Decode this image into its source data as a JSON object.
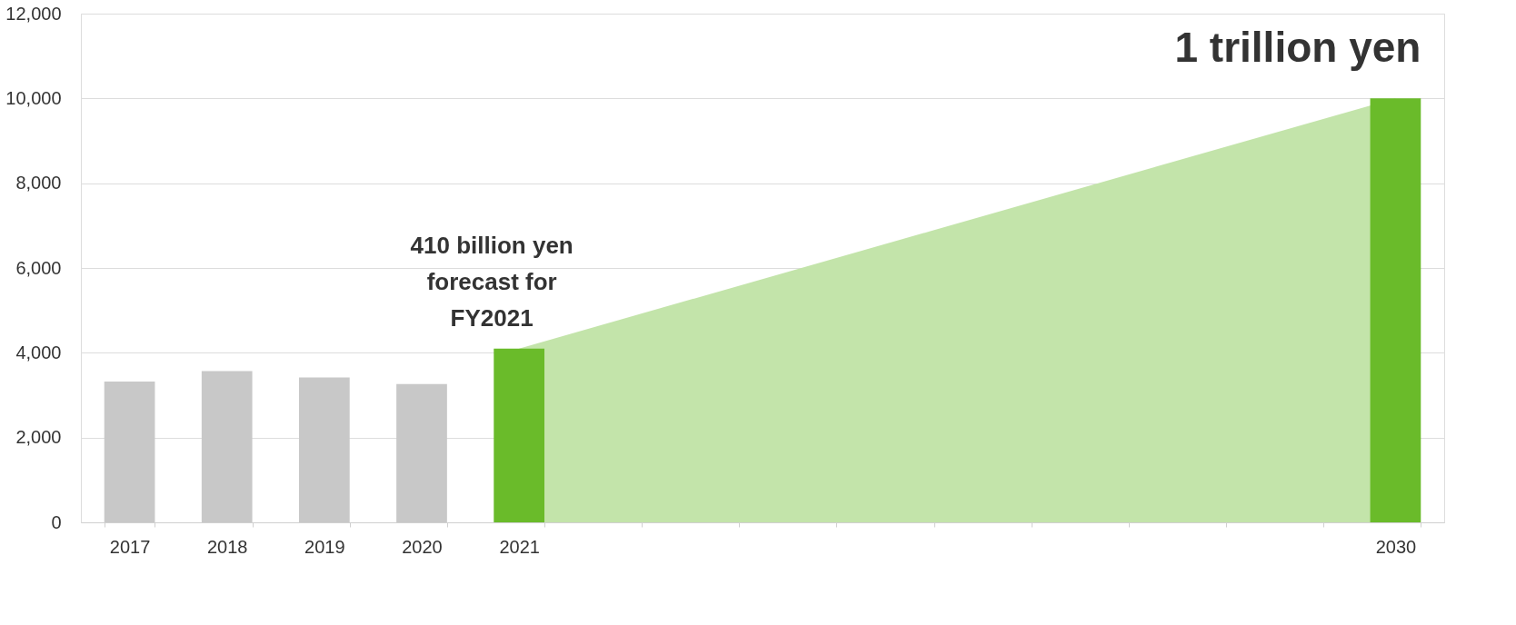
{
  "chart_data": {
    "type": "bar",
    "categories": [
      "2017",
      "2018",
      "2019",
      "2020",
      "2021",
      null,
      null,
      null,
      null,
      null,
      null,
      null,
      null,
      "2030"
    ],
    "series": [
      {
        "type": "area",
        "color": "#c3e4aa",
        "values": [
          null,
          null,
          null,
          null,
          4100,
          null,
          null,
          null,
          null,
          null,
          null,
          null,
          null,
          10000
        ]
      },
      {
        "colors": [
          "#c8c8c8",
          "#c8c8c8",
          "#c8c8c8",
          "#c8c8c8",
          "#6abb2a",
          null,
          null,
          null,
          null,
          null,
          null,
          null,
          null,
          "#6abb2a"
        ],
        "values": [
          3320,
          3570,
          3420,
          3260,
          4100,
          null,
          null,
          null,
          null,
          null,
          null,
          null,
          null,
          10000
        ]
      }
    ],
    "ylim": [
      0,
      12000
    ],
    "yticks": [
      0,
      {
        "value": 2000,
        "label": "2,000"
      },
      {
        "value": 4000,
        "label": "4,000"
      },
      {
        "value": 6000,
        "label": "6,000"
      },
      {
        "value": 8000,
        "label": "8,000"
      },
      {
        "value": 10000,
        "label": "10,000"
      },
      {
        "value": 12000,
        "label": "12,000"
      }
    ],
    "grid": "y",
    "annotations": [
      {
        "text": "410 billion yen\nforecast for\nFY2021",
        "x": "2021",
        "y": 4100
      },
      {
        "text": "1 trillion yen",
        "x": "2030",
        "y": 10000
      }
    ]
  }
}
